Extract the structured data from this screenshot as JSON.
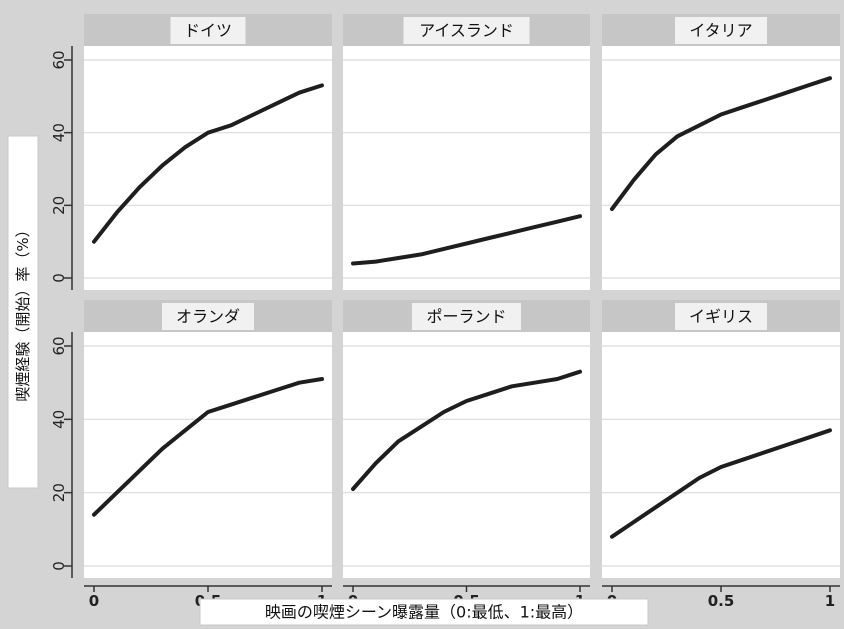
{
  "chart_data": {
    "type": "line",
    "layout": "facet-grid-2x3",
    "xlabel": "映画の喫煙シーン曝露量（0:最低、1:最高）",
    "ylabel": "喫煙経験（開始）率（%）",
    "xlim": [
      0,
      1
    ],
    "ylim": [
      0,
      60
    ],
    "x_ticks": [
      0,
      0.5,
      1
    ],
    "x_tick_labels": [
      "0",
      "0.5",
      "1"
    ],
    "y_ticks": [
      0,
      20,
      40,
      60
    ],
    "y_tick_labels": [
      "0",
      "20",
      "40",
      "60"
    ],
    "grid": true,
    "colors": {
      "background": "#d4d4d4",
      "panel": "#ffffff",
      "strip": "#c6c6c6",
      "strip_label_box": "#f1f1f1",
      "line": "#1e1e1e",
      "grid": "#dcdcdc"
    },
    "panels": [
      {
        "title": "ドイツ",
        "x": [
          0,
          0.1,
          0.2,
          0.3,
          0.4,
          0.5,
          0.6,
          0.7,
          0.8,
          0.9,
          1.0
        ],
        "y": [
          10,
          18,
          25,
          31,
          36,
          40,
          42,
          45,
          48,
          51,
          53
        ]
      },
      {
        "title": "アイスランド",
        "x": [
          0,
          0.1,
          0.2,
          0.3,
          0.4,
          0.5,
          0.6,
          0.7,
          0.8,
          0.9,
          1.0
        ],
        "y": [
          4,
          4.5,
          5.5,
          6.5,
          8,
          9.5,
          11,
          12.5,
          14,
          15.5,
          17
        ]
      },
      {
        "title": "イタリア",
        "x": [
          0,
          0.1,
          0.2,
          0.3,
          0.4,
          0.5,
          0.6,
          0.7,
          0.8,
          0.9,
          1.0
        ],
        "y": [
          19,
          27,
          34,
          39,
          42,
          45,
          47,
          49,
          51,
          53,
          55
        ]
      },
      {
        "title": "オランダ",
        "x": [
          0,
          0.1,
          0.2,
          0.3,
          0.4,
          0.5,
          0.6,
          0.7,
          0.8,
          0.9,
          1.0
        ],
        "y": [
          14,
          20,
          26,
          32,
          37,
          42,
          44,
          46,
          48,
          50,
          51
        ]
      },
      {
        "title": "ポーランド",
        "x": [
          0,
          0.1,
          0.2,
          0.3,
          0.4,
          0.5,
          0.6,
          0.7,
          0.8,
          0.9,
          1.0
        ],
        "y": [
          21,
          28,
          34,
          38,
          42,
          45,
          47,
          49,
          50,
          51,
          53
        ]
      },
      {
        "title": "イギリス",
        "x": [
          0,
          0.1,
          0.2,
          0.3,
          0.4,
          0.5,
          0.6,
          0.7,
          0.8,
          0.9,
          1.0
        ],
        "y": [
          8,
          12,
          16,
          20,
          24,
          27,
          29,
          31,
          33,
          35,
          37
        ]
      }
    ]
  }
}
